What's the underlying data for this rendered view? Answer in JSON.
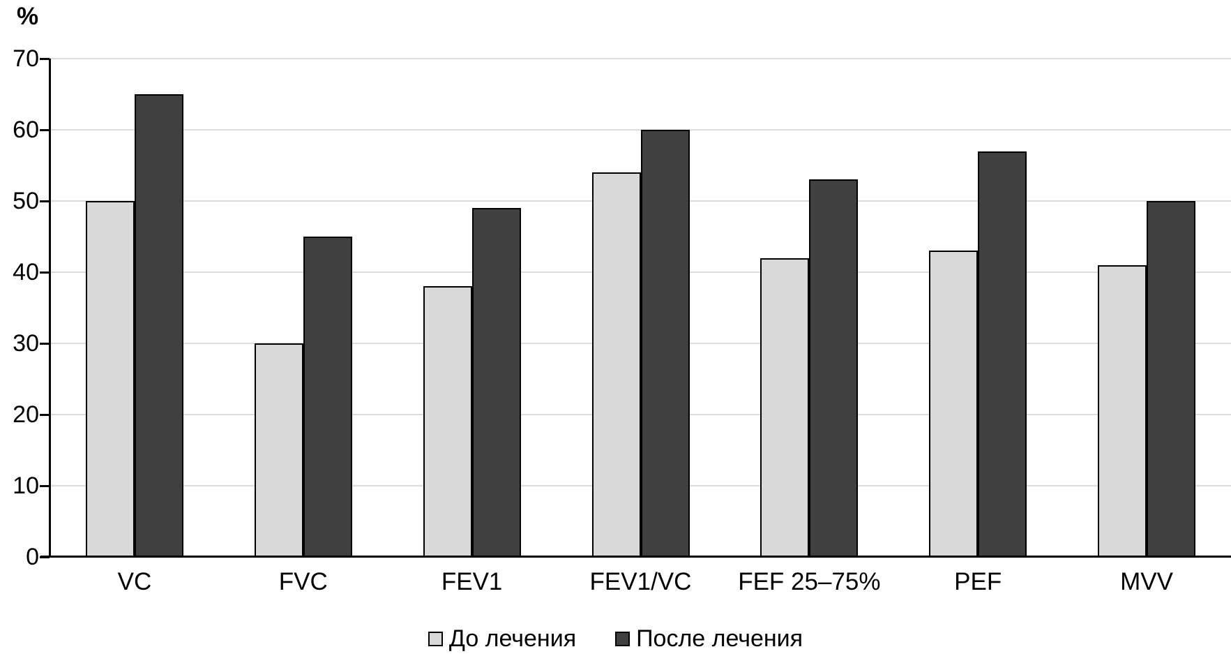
{
  "chart_data": {
    "type": "bar",
    "title": "",
    "categories": [
      "VC",
      "FVC",
      "FEV1",
      "FEV1/VC",
      "FEF 25–75%",
      "PEF",
      "MVV"
    ],
    "series": [
      {
        "name": "До лечения",
        "color": "#d9d9d9",
        "values": [
          50,
          30,
          38,
          54,
          42,
          43,
          41
        ]
      },
      {
        "name": "После лечения",
        "color": "#404040",
        "values": [
          65,
          45,
          49,
          60,
          53,
          57,
          50
        ]
      }
    ],
    "xlabel": "",
    "ylabel": "%",
    "ylim": [
      0,
      70
    ],
    "yticks": [
      0,
      10,
      20,
      30,
      40,
      50,
      60,
      70
    ],
    "grid": true,
    "gridline_color": "#dcdcdc",
    "legend_position": "bottom-center"
  }
}
